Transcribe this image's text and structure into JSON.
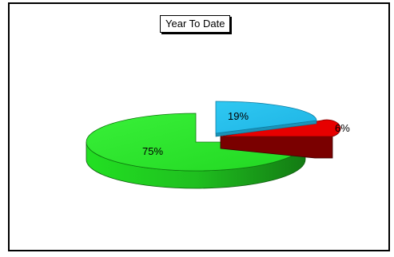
{
  "chart_data": {
    "type": "pie",
    "title": "Year To Date",
    "slices": [
      {
        "label": "19%",
        "value": 19,
        "color": "#29c2ee",
        "side": "#1a93b8"
      },
      {
        "label": "6%",
        "value": 6,
        "color": "#e60000",
        "side": "#7a0000"
      },
      {
        "label": "75%",
        "value": 75,
        "color": "#22e022",
        "side": "#16a516"
      }
    ],
    "exploded": [
      "19%",
      "6%"
    ],
    "legend": "none",
    "style": "3d-pie"
  }
}
